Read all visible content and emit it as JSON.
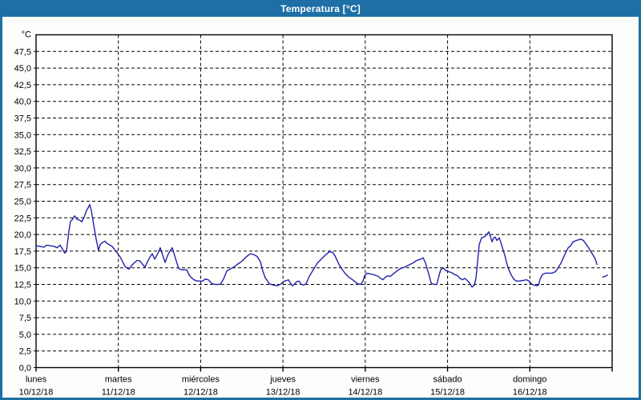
{
  "window": {
    "title": "Temperatura [°C]"
  },
  "colors": {
    "frame_blue": "#1d6fa5",
    "title_text": "#ffffff",
    "line_navy": "#2222aa",
    "grid_black": "#000000",
    "plot_background": "#fffffe",
    "content_background": "#fdfefb"
  },
  "chart_data": {
    "type": "line",
    "title": "Temperatura [°C]",
    "unit_label": "°C",
    "ylabel": "",
    "xlabel": "",
    "ylim": [
      0,
      50
    ],
    "y_tick_step": 2.5,
    "y_tick_labels_top_to_bottom": [
      "47,5",
      "45,0",
      "42,5",
      "40,0",
      "37,5",
      "35,0",
      "32,5",
      "30,0",
      "27,5",
      "25,0",
      "22,5",
      "20,0",
      "17,5",
      "15,0",
      "12,5",
      "10,0",
      "7,5",
      "5,0",
      "2,5",
      "0,0"
    ],
    "grid": "dashed",
    "legend": "none",
    "x_days": [
      {
        "name": "lunes",
        "date": "10/12/18"
      },
      {
        "name": "martes",
        "date": "11/12/18"
      },
      {
        "name": "miércoles",
        "date": "12/12/18"
      },
      {
        "name": "jueves",
        "date": "13/12/18"
      },
      {
        "name": "viernes",
        "date": "14/12/18"
      },
      {
        "name": "sábado",
        "date": "15/12/18"
      },
      {
        "name": "domingo",
        "date": "16/12/18"
      }
    ],
    "x_unit": "days_from_monday_00h",
    "x_range_days": [
      0,
      7
    ],
    "series": [
      {
        "name": "Temperatura",
        "color": "#2222aa",
        "segments": [
          [
            [
              0.0,
              18.3
            ],
            [
              0.049,
              18.2
            ],
            [
              0.097,
              18.1
            ],
            [
              0.127,
              18.4
            ],
            [
              0.175,
              18.3
            ],
            [
              0.224,
              18.2
            ],
            [
              0.253,
              18.0
            ],
            [
              0.292,
              18.4
            ],
            [
              0.321,
              17.8
            ],
            [
              0.35,
              17.2
            ],
            [
              0.37,
              17.5
            ],
            [
              0.399,
              20.5
            ],
            [
              0.419,
              22.0
            ],
            [
              0.438,
              22.2
            ],
            [
              0.467,
              22.8
            ],
            [
              0.497,
              22.3
            ],
            [
              0.536,
              22.1
            ],
            [
              0.555,
              21.9
            ],
            [
              0.584,
              22.6
            ],
            [
              0.613,
              23.6
            ],
            [
              0.633,
              24.0
            ],
            [
              0.652,
              24.5
            ],
            [
              0.672,
              23.6
            ],
            [
              0.701,
              21.4
            ],
            [
              0.73,
              19.3
            ],
            [
              0.759,
              17.6
            ],
            [
              0.779,
              18.5
            ],
            [
              0.808,
              18.8
            ],
            [
              0.837,
              19.0
            ],
            [
              0.857,
              18.7
            ],
            [
              0.886,
              18.5
            ],
            [
              0.925,
              18.2
            ],
            [
              0.954,
              17.7
            ],
            [
              0.983,
              17.3
            ],
            [
              1.022,
              16.6
            ],
            [
              1.052,
              15.9
            ],
            [
              1.081,
              15.2
            ],
            [
              1.11,
              14.9
            ],
            [
              1.13,
              14.8
            ],
            [
              1.159,
              15.3
            ],
            [
              1.198,
              15.8
            ],
            [
              1.227,
              16.1
            ],
            [
              1.266,
              16.0
            ],
            [
              1.295,
              15.5
            ],
            [
              1.324,
              15.1
            ],
            [
              1.353,
              15.9
            ],
            [
              1.383,
              16.6
            ],
            [
              1.412,
              17.1
            ],
            [
              1.441,
              16.3
            ],
            [
              1.47,
              16.9
            ],
            [
              1.509,
              18.0
            ],
            [
              1.538,
              16.9
            ],
            [
              1.568,
              15.8
            ],
            [
              1.597,
              16.8
            ],
            [
              1.626,
              17.5
            ],
            [
              1.655,
              18.0
            ],
            [
              1.684,
              16.8
            ],
            [
              1.714,
              15.6
            ],
            [
              1.733,
              14.9
            ],
            [
              1.762,
              14.7
            ],
            [
              1.801,
              14.7
            ],
            [
              1.83,
              14.7
            ],
            [
              1.86,
              13.9
            ],
            [
              1.889,
              13.5
            ],
            [
              1.918,
              13.2
            ],
            [
              1.957,
              13.0
            ],
            [
              1.986,
              13.0
            ],
            [
              2.025,
              13.0
            ],
            [
              2.054,
              13.3
            ],
            [
              2.093,
              13.2
            ],
            [
              2.122,
              12.8
            ],
            [
              2.142,
              12.6
            ],
            [
              2.171,
              12.5
            ],
            [
              2.21,
              12.5
            ],
            [
              2.239,
              12.5
            ],
            [
              2.278,
              13.3
            ],
            [
              2.317,
              14.5
            ],
            [
              2.346,
              14.7
            ],
            [
              2.385,
              15.0
            ],
            [
              2.414,
              15.2
            ],
            [
              2.444,
              15.5
            ],
            [
              2.483,
              15.8
            ],
            [
              2.512,
              16.1
            ],
            [
              2.551,
              16.6
            ],
            [
              2.58,
              16.9
            ],
            [
              2.609,
              17.1
            ],
            [
              2.638,
              17.0
            ],
            [
              2.658,
              16.9
            ],
            [
              2.687,
              16.7
            ],
            [
              2.726,
              15.9
            ],
            [
              2.755,
              14.5
            ],
            [
              2.784,
              13.5
            ],
            [
              2.814,
              13.0
            ],
            [
              2.833,
              12.6
            ],
            [
              2.882,
              12.4
            ],
            [
              2.931,
              12.3
            ],
            [
              2.979,
              12.6
            ],
            [
              3.018,
              13.0
            ],
            [
              3.048,
              13.1
            ],
            [
              3.067,
              13.2
            ],
            [
              3.096,
              12.6
            ],
            [
              3.116,
              12.3
            ],
            [
              3.145,
              12.6
            ],
            [
              3.164,
              12.9
            ],
            [
              3.194,
              13.0
            ],
            [
              3.223,
              12.5
            ],
            [
              3.252,
              12.4
            ],
            [
              3.281,
              12.6
            ],
            [
              3.32,
              13.7
            ],
            [
              3.369,
              14.7
            ],
            [
              3.418,
              15.7
            ],
            [
              3.466,
              16.3
            ],
            [
              3.515,
              16.9
            ],
            [
              3.544,
              17.2
            ],
            [
              3.564,
              17.4
            ],
            [
              3.603,
              17.3
            ],
            [
              3.632,
              16.8
            ],
            [
              3.651,
              16.3
            ],
            [
              3.681,
              15.5
            ],
            [
              3.71,
              14.9
            ],
            [
              3.759,
              14.1
            ],
            [
              3.798,
              13.6
            ],
            [
              3.846,
              13.2
            ],
            [
              3.876,
              12.9
            ],
            [
              3.905,
              12.6
            ],
            [
              3.944,
              12.5
            ],
            [
              3.973,
              13.0
            ],
            [
              3.992,
              13.8
            ],
            [
              4.022,
              14.2
            ],
            [
              4.051,
              14.1
            ],
            [
              4.09,
              14.0
            ],
            [
              4.119,
              13.9
            ],
            [
              4.158,
              13.7
            ],
            [
              4.187,
              13.4
            ],
            [
              4.216,
              13.2
            ],
            [
              4.246,
              13.6
            ],
            [
              4.275,
              13.8
            ],
            [
              4.304,
              13.7
            ],
            [
              4.343,
              14.1
            ],
            [
              4.382,
              14.5
            ],
            [
              4.431,
              14.9
            ],
            [
              4.479,
              15.1
            ],
            [
              4.528,
              15.4
            ],
            [
              4.577,
              15.7
            ],
            [
              4.625,
              16.1
            ],
            [
              4.674,
              16.3
            ],
            [
              4.703,
              16.5
            ],
            [
              4.733,
              15.7
            ],
            [
              4.771,
              14.1
            ],
            [
              4.801,
              12.7
            ],
            [
              4.83,
              12.5
            ],
            [
              4.869,
              12.5
            ],
            [
              4.898,
              13.9
            ],
            [
              4.917,
              14.7
            ],
            [
              4.947,
              15.0
            ],
            [
              4.976,
              14.6
            ],
            [
              5.015,
              14.4
            ],
            [
              5.044,
              14.3
            ],
            [
              5.083,
              14.0
            ],
            [
              5.122,
              13.8
            ],
            [
              5.151,
              13.4
            ],
            [
              5.18,
              13.2
            ],
            [
              5.21,
              13.4
            ],
            [
              5.239,
              13.1
            ],
            [
              5.268,
              12.7
            ],
            [
              5.297,
              12.1
            ],
            [
              5.326,
              12.4
            ],
            [
              5.346,
              13.5
            ],
            [
              5.365,
              16.0
            ],
            [
              5.385,
              18.5
            ],
            [
              5.414,
              19.5
            ],
            [
              5.453,
              19.7
            ],
            [
              5.482,
              20.1
            ],
            [
              5.502,
              20.4
            ],
            [
              5.521,
              19.7
            ],
            [
              5.541,
              18.9
            ],
            [
              5.56,
              19.5
            ],
            [
              5.58,
              19.6
            ],
            [
              5.599,
              19.1
            ],
            [
              5.628,
              19.5
            ],
            [
              5.648,
              18.8
            ],
            [
              5.677,
              17.6
            ],
            [
              5.697,
              16.8
            ],
            [
              5.716,
              15.8
            ],
            [
              5.745,
              14.7
            ],
            [
              5.774,
              13.9
            ],
            [
              5.804,
              13.3
            ],
            [
              5.833,
              13.0
            ],
            [
              5.872,
              13.0
            ],
            [
              5.92,
              13.1
            ],
            [
              5.959,
              13.2
            ],
            [
              5.988,
              13.0
            ],
            [
              6.018,
              12.6
            ],
            [
              6.047,
              12.4
            ],
            [
              6.086,
              12.3
            ],
            [
              6.105,
              12.4
            ],
            [
              6.125,
              13.3
            ],
            [
              6.154,
              14.0
            ],
            [
              6.193,
              14.2
            ],
            [
              6.232,
              14.2
            ],
            [
              6.271,
              14.2
            ],
            [
              6.31,
              14.4
            ],
            [
              6.339,
              14.9
            ],
            [
              6.378,
              15.7
            ],
            [
              6.407,
              16.5
            ],
            [
              6.437,
              17.3
            ],
            [
              6.466,
              18.0
            ],
            [
              6.495,
              18.3
            ],
            [
              6.524,
              18.9
            ],
            [
              6.563,
              19.1
            ],
            [
              6.592,
              19.2
            ],
            [
              6.621,
              19.3
            ],
            [
              6.65,
              19.1
            ],
            [
              6.68,
              18.6
            ],
            [
              6.709,
              18.1
            ],
            [
              6.738,
              17.5
            ],
            [
              6.767,
              16.9
            ],
            [
              6.796,
              16.3
            ],
            [
              6.816,
              15.5
            ]
          ],
          [
            [
              6.884,
              13.6
            ],
            [
              6.913,
              13.7
            ],
            [
              6.942,
              13.9
            ]
          ]
        ]
      }
    ]
  }
}
